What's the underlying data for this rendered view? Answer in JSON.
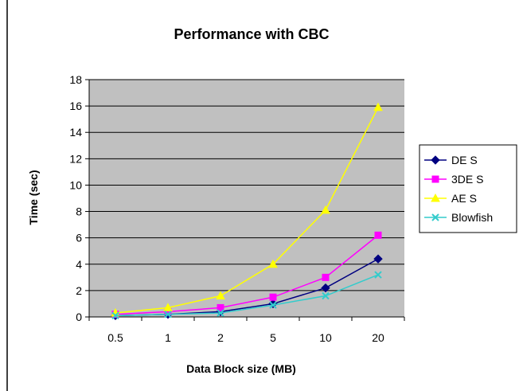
{
  "chart_data": {
    "type": "line",
    "title": "Performance with CBC",
    "xlabel": "Data Block size (MB)",
    "ylabel": "Time (sec)",
    "categories": [
      "0.5",
      "1",
      "2",
      "5",
      "10",
      "20"
    ],
    "ylim": [
      0,
      18
    ],
    "yticks": [
      "0",
      "2",
      "4",
      "6",
      "8",
      "10",
      "12",
      "14",
      "16",
      "18"
    ],
    "grid": true,
    "legend_position": "right",
    "plot_background": "#c0c0c0",
    "series": [
      {
        "name": "DE S",
        "color": "#000080",
        "marker": "diamond",
        "values": [
          0.1,
          0.2,
          0.4,
          1.0,
          2.2,
          4.4
        ]
      },
      {
        "name": "3DE S",
        "color": "#ff00ff",
        "marker": "square",
        "values": [
          0.2,
          0.4,
          0.7,
          1.5,
          3.0,
          6.2
        ]
      },
      {
        "name": "AE S",
        "color": "#ffff00",
        "marker": "triangle",
        "values": [
          0.3,
          0.7,
          1.6,
          4.0,
          8.1,
          15.9
        ]
      },
      {
        "name": "Blowfish",
        "color": "#33cccc",
        "marker": "x",
        "values": [
          0.1,
          0.2,
          0.3,
          0.9,
          1.6,
          3.2
        ]
      }
    ]
  }
}
